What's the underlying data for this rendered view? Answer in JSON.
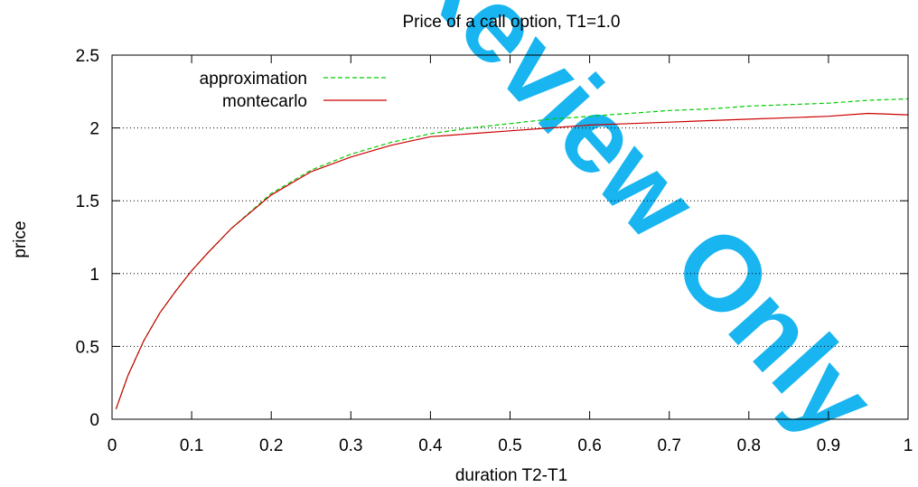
{
  "chart_data": {
    "type": "line",
    "title": "Price of a call option, T1=1.0",
    "xlabel": "duration T2-T1",
    "ylabel": "price",
    "xlim": [
      0,
      1
    ],
    "ylim": [
      0,
      2.5
    ],
    "xticks": [
      "0",
      "0.1",
      "0.2",
      "0.3",
      "0.4",
      "0.5",
      "0.6",
      "0.7",
      "0.8",
      "0.9",
      "1"
    ],
    "yticks": [
      "0",
      "0.5",
      "1",
      "1.5",
      "2",
      "2.5"
    ],
    "grid": "horizontal dotted at 0.5, 1, 1.5, 2",
    "legend_position": "top-left",
    "series": [
      {
        "name": "approximation",
        "style": "dashed",
        "color": "#00cc00",
        "x": [
          0.005,
          0.02,
          0.04,
          0.06,
          0.08,
          0.1,
          0.12,
          0.15,
          0.2,
          0.25,
          0.3,
          0.35,
          0.4,
          0.45,
          0.5,
          0.55,
          0.6,
          0.65,
          0.7,
          0.75,
          0.8,
          0.85,
          0.9,
          0.95,
          1.0
        ],
        "y": [
          0.07,
          0.3,
          0.54,
          0.73,
          0.88,
          1.02,
          1.14,
          1.31,
          1.55,
          1.71,
          1.82,
          1.9,
          1.96,
          2.0,
          2.03,
          2.06,
          2.08,
          2.1,
          2.12,
          2.13,
          2.15,
          2.16,
          2.17,
          2.19,
          2.2
        ]
      },
      {
        "name": "montecarlo",
        "style": "solid",
        "color": "#cc0000",
        "x": [
          0.005,
          0.02,
          0.04,
          0.06,
          0.08,
          0.1,
          0.12,
          0.15,
          0.2,
          0.25,
          0.3,
          0.35,
          0.4,
          0.45,
          0.5,
          0.55,
          0.6,
          0.65,
          0.7,
          0.75,
          0.8,
          0.85,
          0.9,
          0.95,
          1.0
        ],
        "y": [
          0.07,
          0.3,
          0.54,
          0.73,
          0.88,
          1.02,
          1.14,
          1.31,
          1.54,
          1.7,
          1.8,
          1.88,
          1.94,
          1.96,
          1.98,
          2.0,
          2.02,
          2.03,
          2.04,
          2.05,
          2.06,
          2.07,
          2.08,
          2.1,
          2.09
        ]
      }
    ]
  },
  "watermark": "Review Only"
}
